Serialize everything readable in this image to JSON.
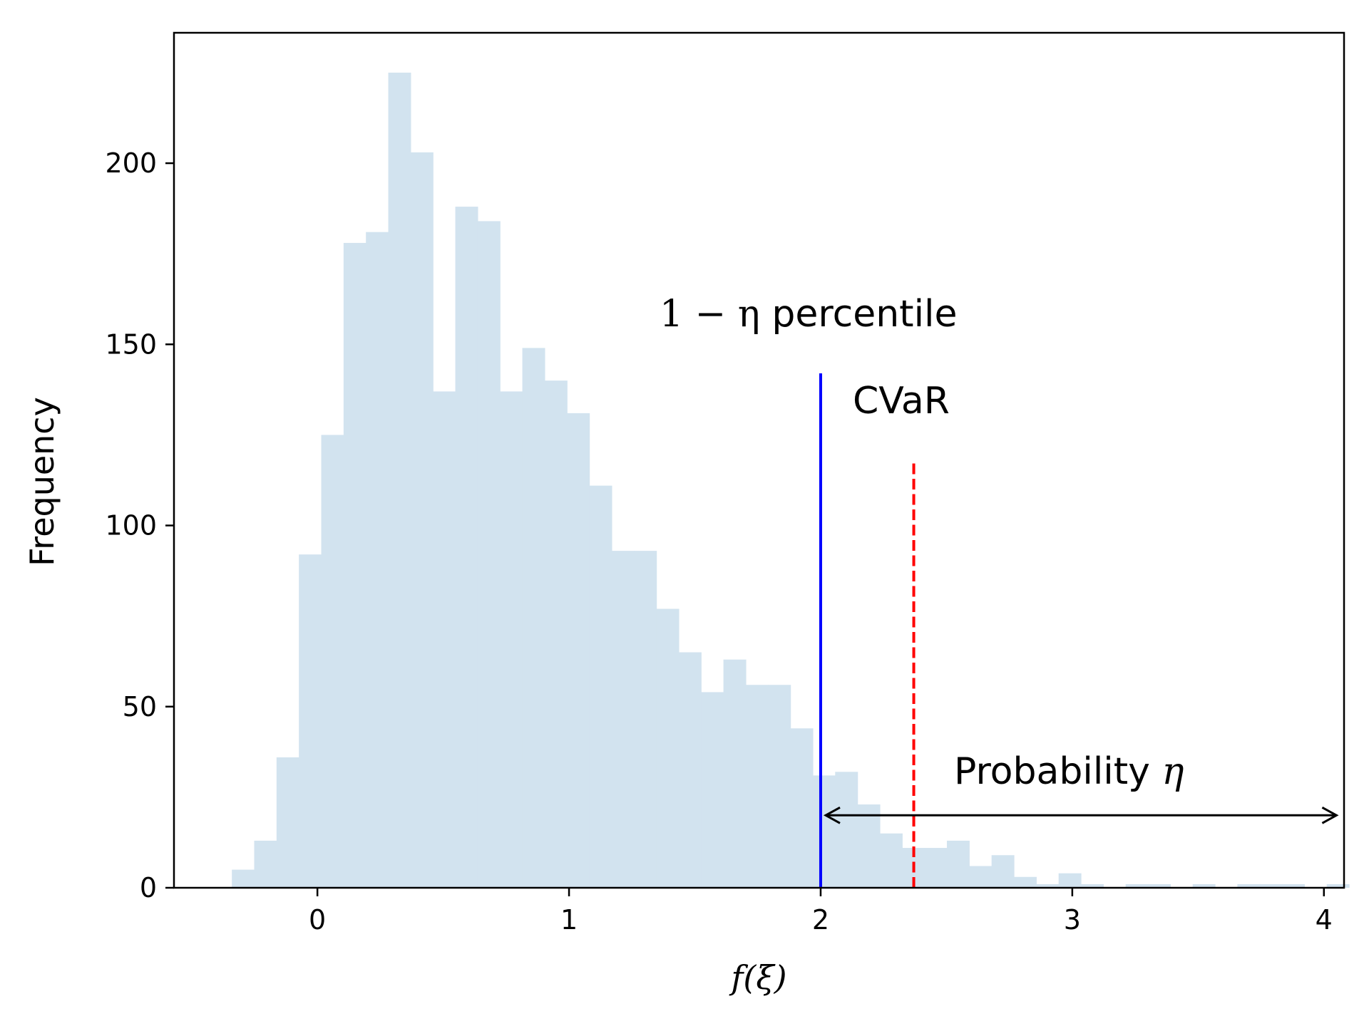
{
  "chart_data": {
    "type": "bar",
    "title": "",
    "xlabel": "f(ξ)",
    "ylabel": "Frequency",
    "xlim": [
      -0.57,
      4.08
    ],
    "ylim": [
      0,
      236
    ],
    "xticks": [
      0,
      1,
      2,
      3,
      4
    ],
    "yticks": [
      0,
      50,
      100,
      150,
      200
    ],
    "grid": false,
    "bar_color": "#d2e3ef",
    "histogram": {
      "bin_start": -0.34,
      "bin_width": 0.0888,
      "counts": [
        5,
        13,
        36,
        92,
        125,
        178,
        181,
        225,
        203,
        137,
        188,
        184,
        137,
        149,
        140,
        131,
        111,
        93,
        93,
        77,
        65,
        54,
        63,
        56,
        56,
        44,
        31,
        32,
        23,
        15,
        11,
        11,
        13,
        6,
        9,
        3,
        1,
        4,
        1,
        0,
        1,
        1,
        0,
        1,
        0,
        1,
        1,
        1,
        0,
        1
      ]
    },
    "vlines": [
      {
        "name": "percentile",
        "x": 2.0,
        "y_top": 142,
        "color": "#0000ff",
        "style": "solid"
      },
      {
        "name": "cvar",
        "x": 2.37,
        "y_top": 118,
        "color": "#ff0000",
        "style": "dashed"
      }
    ],
    "arrow": {
      "x_from": 2.02,
      "x_to": 4.05,
      "y": 20,
      "color": "#000000"
    },
    "annotations": {
      "percentile_math": "1 − η",
      "percentile_text": " percentile",
      "cvar": "CVaR",
      "prob_text": "Probability ",
      "prob_math": "η"
    }
  }
}
